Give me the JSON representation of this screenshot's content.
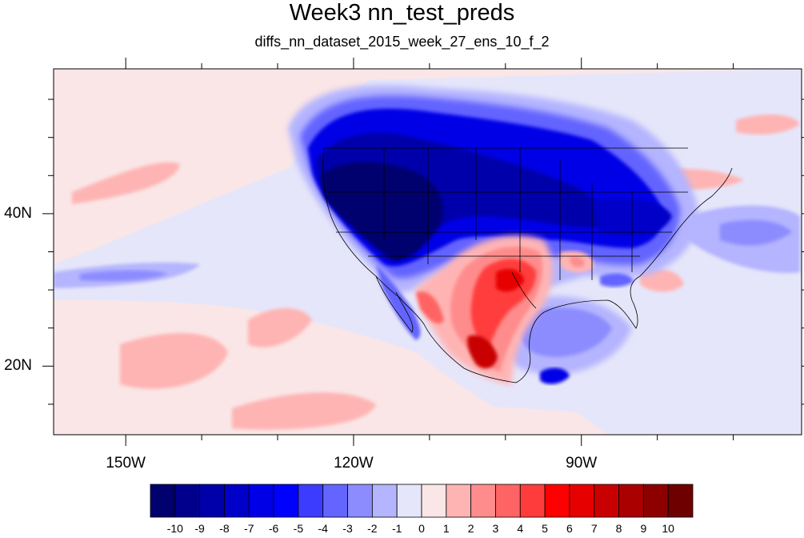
{
  "title": "Week3 nn_test_preds",
  "subtitle": "diffs_nn_dataset_2015_week_27_ens_10_f_2",
  "lon_labels": [
    {
      "text": "150W",
      "lon": -150
    },
    {
      "text": "120W",
      "lon": -120
    },
    {
      "text": "90W",
      "lon": -90
    }
  ],
  "lat_labels": [
    {
      "text": "40N",
      "lat": 40
    },
    {
      "text": "20N",
      "lat": 20
    }
  ],
  "map_extent": {
    "lon_min": -159.5,
    "lon_max": -61,
    "lat_min": 11,
    "lat_max": 59
  },
  "colorbar": {
    "labels": [
      "-10",
      "-9",
      "-8",
      "-7",
      "-6",
      "-5",
      "-4",
      "-3",
      "-2",
      "-1",
      "0",
      "1",
      "2",
      "3",
      "4",
      "5",
      "6",
      "7",
      "8",
      "9",
      "10"
    ],
    "colors": [
      "#00006e",
      "#00008c",
      "#0000aa",
      "#0000c8",
      "#0000e6",
      "#0000ff",
      "#3c3cff",
      "#6464ff",
      "#8c8cff",
      "#b4b4ff",
      "#e6e6fa",
      "#fae6e6",
      "#ffb4b4",
      "#ff8c8c",
      "#ff6464",
      "#ff3c3c",
      "#ff0000",
      "#e60000",
      "#c80000",
      "#aa0000",
      "#8c0000",
      "#6e0000"
    ]
  },
  "field_regions": [
    {
      "name": "pacific-background",
      "color": "#fae6e6"
    },
    {
      "name": "pacific-light-blue-band",
      "color": "#e6e6fa"
    },
    {
      "name": "us-west-strong-negative",
      "color": "#00006e"
    },
    {
      "name": "us-north-negative",
      "color": "#0000e6"
    },
    {
      "name": "texas-positive",
      "color": "#ff3c3c"
    },
    {
      "name": "mexico-strong-positive",
      "color": "#c80000"
    },
    {
      "name": "gulf-negative",
      "color": "#8c8cff"
    },
    {
      "name": "eastern-pacific-positive",
      "color": "#ffb4b4"
    }
  ]
}
